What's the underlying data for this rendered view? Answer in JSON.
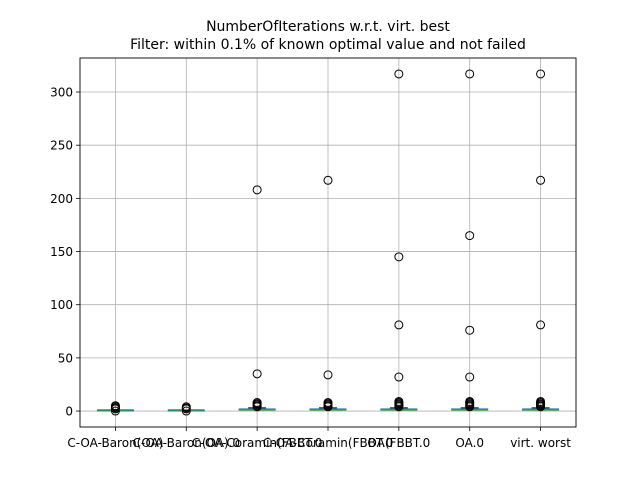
{
  "chart_data": {
    "type": "box",
    "title": "NumberOfIterations w.r.t. virt. best",
    "subtitle": "Filter: within 0.1% of known optimal value and not failed",
    "xlabel": "",
    "ylabel": "",
    "ylim": [
      -15,
      332
    ],
    "yticks": [
      0,
      50,
      100,
      150,
      200,
      250,
      300
    ],
    "grid": true,
    "legend": "none",
    "colors": {
      "box": "#1f77b4",
      "median": "#2ca02c",
      "whisker": "#000000",
      "flier": "#000000",
      "grid": "#b0b0b0"
    },
    "categories": [
      "C-OA-Baron(OA)",
      "C-OA-Baron(OA).0",
      "C-OA-Coramin(FBBT.0",
      "C-OA-Coramin(FBBT.0",
      "OA(FBBT.0",
      "OA.0",
      "virt. worst"
    ],
    "boxes": [
      {
        "q1": 1,
        "median": 1,
        "q3": 1,
        "whislo": 1,
        "whishi": 1,
        "fliers": [
          0,
          2,
          3,
          4,
          5
        ]
      },
      {
        "q1": 1,
        "median": 1,
        "q3": 1,
        "whislo": 1,
        "whishi": 1,
        "fliers": [
          0,
          2,
          3,
          4
        ]
      },
      {
        "q1": 1,
        "median": 1,
        "q3": 2,
        "whislo": 1,
        "whishi": 3,
        "fliers": [
          4,
          5,
          6,
          7,
          8,
          35,
          208
        ]
      },
      {
        "q1": 1,
        "median": 1,
        "q3": 2,
        "whislo": 1,
        "whishi": 3,
        "fliers": [
          4,
          5,
          6,
          7,
          8,
          34,
          217
        ]
      },
      {
        "q1": 1,
        "median": 1,
        "q3": 2,
        "whislo": 1,
        "whishi": 3,
        "fliers": [
          4,
          5,
          6,
          7,
          8,
          9,
          32,
          81,
          145,
          317
        ]
      },
      {
        "q1": 1,
        "median": 1,
        "q3": 2,
        "whislo": 1,
        "whishi": 3,
        "fliers": [
          4,
          5,
          6,
          7,
          8,
          9,
          32,
          76,
          165,
          317
        ]
      },
      {
        "q1": 1,
        "median": 1,
        "q3": 2,
        "whislo": 1,
        "whishi": 3,
        "fliers": [
          4,
          5,
          6,
          7,
          8,
          9,
          81,
          217,
          317
        ]
      }
    ]
  }
}
